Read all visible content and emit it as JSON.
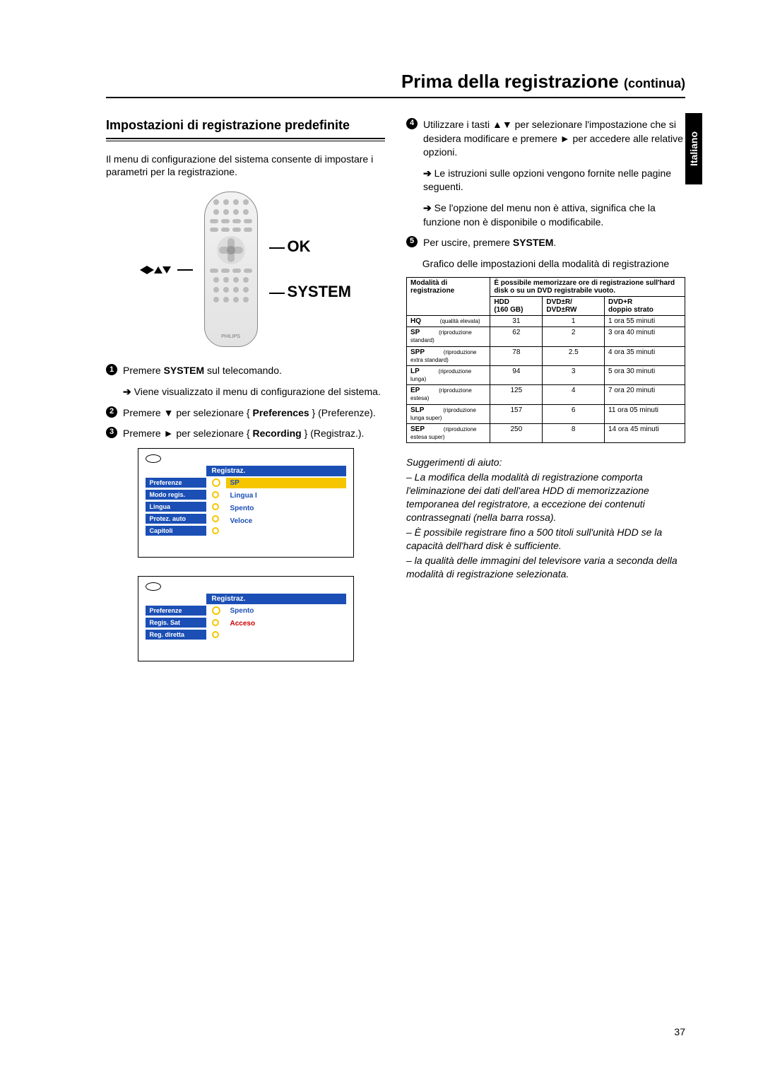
{
  "page": {
    "title_main": "Prima della registrazione",
    "title_suffix": "(continua)",
    "language_tab": "Italiano",
    "page_number": "37"
  },
  "left": {
    "heading": "Impostazioni di registrazione predefinite",
    "intro": "Il menu di configurazione del sistema consente di impostare i parametri per la registrazione.",
    "remote_labels": {
      "arrows": "◄►▲▼",
      "ok": "OK",
      "system": "SYSTEM"
    },
    "steps": {
      "s1_a": "Premere ",
      "s1_bold": "SYSTEM",
      "s1_b": " sul telecomando.",
      "s1_sub": "Viene visualizzato il menu di configurazione del sistema.",
      "s2_a": "Premere ▼ per selezionare { ",
      "s2_bold": "Preferences",
      "s2_b": " } (Preferenze).",
      "s3_a": "Premere ► per selezionare { ",
      "s3_bold": "Recording",
      "s3_b": " } (Registraz.)."
    },
    "menu1": {
      "header": "Registraz.",
      "left_items": [
        "Preferenze",
        "Modo regis.",
        "Lingua",
        "Protez. auto",
        "Capitoli"
      ],
      "right_items": [
        {
          "text": "SP",
          "cls": "yellow"
        },
        {
          "text": "Lingua I",
          "cls": "blue"
        },
        {
          "text": "Spento",
          "cls": "blue"
        },
        {
          "text": "Veloce",
          "cls": "blue"
        }
      ]
    },
    "menu2": {
      "header": "Registraz.",
      "left_items": [
        "Preferenze",
        "Regis. Sat",
        "Reg. diretta"
      ],
      "right_items": [
        {
          "text": "Spento",
          "cls": "blue"
        },
        {
          "text": "Acceso",
          "cls": "red"
        }
      ]
    }
  },
  "right": {
    "s4_a": "Utilizzare i tasti ▲▼ per selezionare l'impostazione che si desidera modificare e premere ► per accedere alle relative opzioni.",
    "s4_sub1": "Le istruzioni sulle opzioni vengono fornite nelle pagine seguenti.",
    "s4_sub2": "Se l'opzione del menu non è attiva, significa che la funzione non è disponibile o modificabile.",
    "s5_a": "Per uscire, premere ",
    "s5_bold": "SYSTEM",
    "s5_b": ".",
    "table_caption": "Grafico delle impostazioni della modalità di registrazione",
    "table": {
      "h_mode": "Modalità di registrazione",
      "h_store": "È possibile memorizzare ore di registrazione sull'hard disk o su un DVD registrabile vuoto.",
      "h_hdd_a": "HDD",
      "h_hdd_b": "(160 GB)",
      "h_dvdrw_a": "DVD±R/",
      "h_dvdrw_b": "DVD±RW",
      "h_dl_a": "DVD+R",
      "h_dl_b": "doppio strato",
      "rows": [
        {
          "code": "HQ",
          "desc": "(qualità elevata)",
          "hdd": "31",
          "rw": "1",
          "dl": "1 ora 55 minuti"
        },
        {
          "code": "SP",
          "desc": "(riproduzione standard)",
          "hdd": "62",
          "rw": "2",
          "dl": "3 ora 40 minuti"
        },
        {
          "code": "SPP",
          "desc": "(riproduzione extra standard)",
          "hdd": "78",
          "rw": "2.5",
          "dl": "4 ora 35 minuti"
        },
        {
          "code": "LP",
          "desc": "(riproduzione lunga)",
          "hdd": "94",
          "rw": "3",
          "dl": "5 ora 30 minuti"
        },
        {
          "code": "EP",
          "desc": "(riproduzione estesa)",
          "hdd": "125",
          "rw": "4",
          "dl": "7 ora 20 minuti"
        },
        {
          "code": "SLP",
          "desc": "(riproduzione lunga super)",
          "hdd": "157",
          "rw": "6",
          "dl": "11 ora 05 minuti"
        },
        {
          "code": "SEP",
          "desc": "(riproduzione estesa super)",
          "hdd": "250",
          "rw": "8",
          "dl": "14 ora 45 minuti"
        }
      ]
    },
    "hints_title": "Suggerimenti di aiuto:",
    "hints": [
      "– La modifica della modalità di registrazione comporta l'eliminazione dei dati dell'area HDD di memorizzazione temporanea del registratore, a eccezione dei contenuti contrassegnati (nella barra rossa).",
      "– È possibile registrare fino a 500 titoli sull'unità HDD se la capacità dell'hard disk è sufficiente.",
      "– la qualità delle immagini del televisore varia a seconda della modalità di registrazione selezionata."
    ]
  },
  "colors": {
    "menu_blue": "#1b4fb5",
    "menu_yellow": "#f5c600",
    "menu_red": "#c00000"
  }
}
